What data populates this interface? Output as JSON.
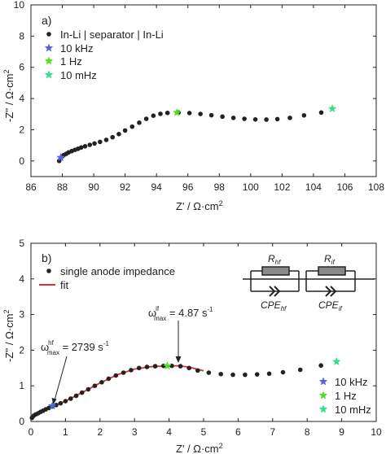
{
  "chart_data": [
    {
      "type": "scatter",
      "panel_label": "a)",
      "xlabel": "Z' / Ω·cm²",
      "ylabel": "-Z'' / Ω·cm²",
      "xlim": [
        86,
        108
      ],
      "ylim": [
        -1,
        10
      ],
      "xticks": [
        86,
        88,
        90,
        92,
        94,
        96,
        98,
        100,
        102,
        104,
        106,
        108
      ],
      "yticks": [
        0,
        2,
        4,
        6,
        8,
        10
      ],
      "legend_position": "top-left",
      "series": [
        {
          "name": "In-Li | separator | In-Li",
          "marker": "circle",
          "color": "#222222",
          "x": [
            87.8,
            87.9,
            88.0,
            88.1,
            88.25,
            88.4,
            88.6,
            88.8,
            89.0,
            89.2,
            89.45,
            89.75,
            90.05,
            90.4,
            90.8,
            91.2,
            91.6,
            92.0,
            92.45,
            92.9,
            93.35,
            93.8,
            94.25,
            94.7,
            95.4,
            96.1,
            96.8,
            97.5,
            98.2,
            98.9,
            99.6,
            100.3,
            101.0,
            101.7,
            102.5,
            103.4,
            104.5
          ],
          "y": [
            0.0,
            0.2,
            0.3,
            0.38,
            0.46,
            0.55,
            0.63,
            0.71,
            0.78,
            0.86,
            0.94,
            1.03,
            1.12,
            1.22,
            1.35,
            1.52,
            1.72,
            1.95,
            2.2,
            2.45,
            2.7,
            2.9,
            3.02,
            3.08,
            3.1,
            3.07,
            3.01,
            2.93,
            2.84,
            2.76,
            2.7,
            2.66,
            2.65,
            2.68,
            2.76,
            2.92,
            3.1
          ]
        },
        {
          "name": "10 kHz",
          "marker": "star",
          "color": "#5566dd",
          "x": [
            87.9
          ],
          "y": [
            0.22
          ]
        },
        {
          "name": "1 Hz",
          "marker": "star",
          "color": "#55dd22",
          "x": [
            95.3
          ],
          "y": [
            3.1
          ]
        },
        {
          "name": "10 mHz",
          "marker": "star",
          "color": "#33e08a",
          "x": [
            105.2
          ],
          "y": [
            3.35
          ]
        }
      ]
    },
    {
      "type": "scatter",
      "panel_label": "b)",
      "xlabel": "Z' / Ω·cm²",
      "ylabel": "-Z'' / Ω·cm²",
      "xlim": [
        0,
        10
      ],
      "ylim": [
        0,
        5
      ],
      "xticks": [
        0,
        1,
        2,
        3,
        4,
        5,
        6,
        7,
        8,
        9,
        10
      ],
      "yticks": [
        0,
        1,
        2,
        3,
        4,
        5
      ],
      "legend_position": "top-left",
      "series": [
        {
          "name": "single anode impedance",
          "marker": "circle",
          "color": "#222222",
          "x": [
            0.03,
            0.08,
            0.14,
            0.21,
            0.28,
            0.35,
            0.43,
            0.52,
            0.62,
            0.73,
            0.86,
            1.0,
            1.15,
            1.31,
            1.48,
            1.66,
            1.85,
            2.05,
            2.25,
            2.46,
            2.68,
            2.9,
            3.13,
            3.36,
            3.6,
            3.84,
            4.08,
            4.33,
            4.58,
            4.83,
            5.15,
            5.5,
            5.85,
            6.2,
            6.55,
            6.9,
            7.3,
            7.8,
            8.4
          ],
          "y": [
            0.1,
            0.16,
            0.2,
            0.23,
            0.27,
            0.3,
            0.34,
            0.38,
            0.42,
            0.46,
            0.51,
            0.57,
            0.64,
            0.72,
            0.81,
            0.9,
            1.0,
            1.1,
            1.2,
            1.29,
            1.37,
            1.44,
            1.5,
            1.53,
            1.55,
            1.56,
            1.56,
            1.55,
            1.5,
            1.43,
            1.37,
            1.33,
            1.31,
            1.31,
            1.32,
            1.34,
            1.38,
            1.45,
            1.57
          ]
        },
        {
          "name": "fit",
          "marker": "line",
          "color": "#e03030",
          "x": [
            0.0,
            0.3,
            0.6,
            1.0,
            1.5,
            2.0,
            2.5,
            3.0,
            3.5,
            4.0,
            4.3,
            4.6,
            5.0
          ],
          "y": [
            0.08,
            0.28,
            0.42,
            0.57,
            0.82,
            1.08,
            1.31,
            1.47,
            1.54,
            1.56,
            1.56,
            1.52,
            1.42
          ]
        },
        {
          "name": "10 kHz",
          "marker": "star",
          "color": "#5566dd",
          "x": [
            0.62
          ],
          "y": [
            0.44
          ]
        },
        {
          "name": "1 Hz",
          "marker": "star",
          "color": "#55dd22",
          "x": [
            3.95
          ],
          "y": [
            1.56
          ]
        },
        {
          "name": "10 mHz",
          "marker": "star",
          "color": "#33e08a",
          "x": [
            8.85
          ],
          "y": [
            1.68
          ]
        }
      ],
      "annotations": [
        {
          "text": "ω_max^hf = 2739 s⁻¹",
          "point": [
            0.62,
            0.44
          ]
        },
        {
          "text": "ω_max^if = 4.87 s⁻¹",
          "point": [
            4.25,
            1.56
          ]
        }
      ],
      "circuit": {
        "r1": "R_hf",
        "cpe1": "CPE_hf",
        "r2": "R_if",
        "cpe2": "CPE_if"
      }
    }
  ],
  "text": {
    "a_label": "a)",
    "b_label": "b)",
    "a_xlabel": "Z' / Ω·cm",
    "a_ylabel": "-Z'' / Ω·cm",
    "b_xlabel": "Z' / Ω·cm",
    "b_ylabel": "-Z'' / Ω·cm",
    "sq": "2",
    "leg_a1": "In-Li | separator | In-Li",
    "leg_10k": "10 kHz",
    "leg_1hz": "1 Hz",
    "leg_10m": "10 mHz",
    "leg_b1": "single anode impedance",
    "leg_fit": "fit",
    "omega": "ω",
    "max": "max",
    "hf": "hf",
    "if": "if",
    "ann_hf_val": " = 2739 s",
    "ann_if_val": " = 4.87 s",
    "neg1": "-1",
    "R": "R",
    "CPE": "CPE"
  },
  "colors": {
    "point": "#222222",
    "fit": "#e03030",
    "star_10k": "#5566dd",
    "star_1hz": "#55dd22",
    "star_10m": "#33e08a",
    "resistor": "#8a8a8a"
  }
}
